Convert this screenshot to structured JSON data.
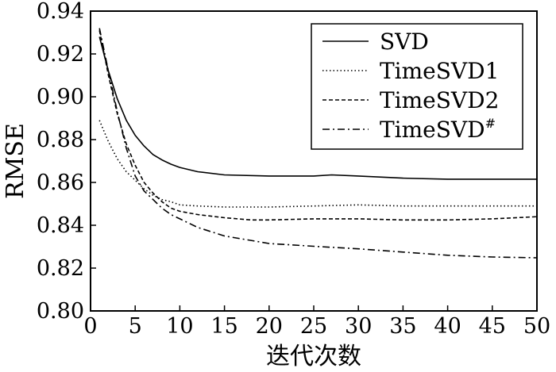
{
  "chart_data": {
    "type": "line",
    "title": "",
    "xlabel": "迭代次数",
    "ylabel": "RMSE",
    "xlim": [
      0,
      50
    ],
    "ylim": [
      0.8,
      0.94
    ],
    "x_ticks": [
      "0",
      "5",
      "10",
      "15",
      "20",
      "25",
      "30",
      "35",
      "40",
      "45",
      "50"
    ],
    "y_ticks": [
      "0.80",
      "0.82",
      "0.84",
      "0.86",
      "0.88",
      "0.90",
      "0.92",
      "0.94"
    ],
    "grid": false,
    "legend_position": "top-right",
    "series": [
      {
        "name": "SVD",
        "dash": "solid",
        "color": "#000000",
        "x": [
          1,
          2,
          3,
          4,
          5,
          6,
          7,
          8,
          9,
          10,
          12,
          15,
          20,
          25,
          27,
          30,
          35,
          40,
          45,
          50
        ],
        "y": [
          0.928,
          0.912,
          0.899,
          0.889,
          0.882,
          0.877,
          0.873,
          0.8705,
          0.8685,
          0.867,
          0.865,
          0.8635,
          0.863,
          0.863,
          0.8635,
          0.863,
          0.862,
          0.8615,
          0.8615,
          0.8615
        ]
      },
      {
        "name": "TimeSVD1",
        "dash": "dotted",
        "color": "#000000",
        "x": [
          1,
          2,
          3,
          4,
          5,
          6,
          7,
          8,
          9,
          10,
          12,
          15,
          20,
          25,
          30,
          35,
          40,
          45,
          50
        ],
        "y": [
          0.889,
          0.879,
          0.871,
          0.865,
          0.861,
          0.857,
          0.854,
          0.852,
          0.851,
          0.8495,
          0.849,
          0.8485,
          0.8485,
          0.849,
          0.8495,
          0.849,
          0.849,
          0.849,
          0.849
        ]
      },
      {
        "name": "TimeSVD2",
        "dash": "dashed",
        "color": "#000000",
        "x": [
          1,
          2,
          3,
          4,
          5,
          6,
          7,
          8,
          9,
          10,
          12,
          15,
          18,
          20,
          25,
          30,
          35,
          40,
          45,
          50
        ],
        "y": [
          0.931,
          0.91,
          0.892,
          0.878,
          0.868,
          0.86,
          0.855,
          0.851,
          0.848,
          0.8465,
          0.845,
          0.8435,
          0.8425,
          0.8425,
          0.843,
          0.843,
          0.8425,
          0.8425,
          0.843,
          0.844
        ]
      },
      {
        "name": "TimeSVD#",
        "dash": "dashdot",
        "color": "#000000",
        "x": [
          1,
          2,
          3,
          4,
          5,
          6,
          7,
          8,
          9,
          10,
          12,
          15,
          20,
          25,
          30,
          35,
          40,
          45,
          50
        ],
        "y": [
          0.932,
          0.912,
          0.893,
          0.876,
          0.863,
          0.856,
          0.852,
          0.848,
          0.845,
          0.843,
          0.839,
          0.835,
          0.8315,
          0.8302,
          0.829,
          0.8275,
          0.826,
          0.8252,
          0.8248
        ]
      }
    ]
  }
}
